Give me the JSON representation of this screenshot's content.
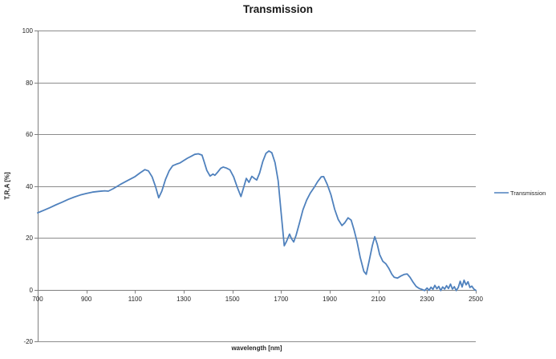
{
  "title": "Transmission",
  "legend": {
    "label": "Transmission"
  },
  "colors": {
    "series_line": "#4F81BD",
    "gridline": "#8C8C8C",
    "axis": "#808080",
    "label_text": "#262626"
  },
  "chart_data": {
    "type": "line",
    "title": "Transmission",
    "xlabel": "wavelength [nm]",
    "ylabel": "T,R,A [%]",
    "xlim": [
      700,
      2500
    ],
    "ylim": [
      -20,
      100
    ],
    "x_ticks": [
      700,
      900,
      1100,
      1300,
      1500,
      1700,
      1900,
      2100,
      2300,
      2500
    ],
    "y_ticks": [
      -20,
      0,
      20,
      40,
      60,
      80,
      100
    ],
    "grid": "horizontal-only",
    "legend_position": "right-middle",
    "series": [
      {
        "name": "Transmission",
        "color": "#4F81BD",
        "points": [
          [
            700,
            29.6
          ],
          [
            725,
            30.6
          ],
          [
            750,
            31.6
          ],
          [
            775,
            32.7
          ],
          [
            800,
            33.7
          ],
          [
            825,
            34.8
          ],
          [
            850,
            35.7
          ],
          [
            875,
            36.5
          ],
          [
            900,
            37.1
          ],
          [
            925,
            37.6
          ],
          [
            950,
            37.9
          ],
          [
            975,
            38.1
          ],
          [
            990,
            38.0
          ],
          [
            1010,
            38.9
          ],
          [
            1040,
            40.6
          ],
          [
            1070,
            42.1
          ],
          [
            1100,
            43.6
          ],
          [
            1120,
            45.0
          ],
          [
            1140,
            46.3
          ],
          [
            1155,
            45.8
          ],
          [
            1170,
            43.5
          ],
          [
            1185,
            39.5
          ],
          [
            1197,
            35.4
          ],
          [
            1210,
            38.0
          ],
          [
            1225,
            42.5
          ],
          [
            1240,
            45.8
          ],
          [
            1255,
            47.8
          ],
          [
            1270,
            48.4
          ],
          [
            1285,
            48.9
          ],
          [
            1300,
            49.8
          ],
          [
            1315,
            50.7
          ],
          [
            1330,
            51.4
          ],
          [
            1345,
            52.2
          ],
          [
            1360,
            52.4
          ],
          [
            1375,
            51.9
          ],
          [
            1385,
            49.0
          ],
          [
            1395,
            46.0
          ],
          [
            1408,
            43.8
          ],
          [
            1420,
            44.6
          ],
          [
            1428,
            44.1
          ],
          [
            1440,
            45.4
          ],
          [
            1452,
            46.8
          ],
          [
            1462,
            47.3
          ],
          [
            1475,
            46.9
          ],
          [
            1490,
            46.2
          ],
          [
            1505,
            43.5
          ],
          [
            1520,
            39.5
          ],
          [
            1535,
            35.9
          ],
          [
            1545,
            39.0
          ],
          [
            1557,
            42.9
          ],
          [
            1568,
            41.4
          ],
          [
            1580,
            43.7
          ],
          [
            1590,
            42.9
          ],
          [
            1600,
            42.3
          ],
          [
            1612,
            45.0
          ],
          [
            1625,
            49.5
          ],
          [
            1638,
            52.6
          ],
          [
            1650,
            53.5
          ],
          [
            1662,
            52.8
          ],
          [
            1675,
            49.0
          ],
          [
            1688,
            42.0
          ],
          [
            1700,
            30.0
          ],
          [
            1713,
            16.9
          ],
          [
            1722,
            18.5
          ],
          [
            1735,
            21.4
          ],
          [
            1743,
            19.6
          ],
          [
            1752,
            18.4
          ],
          [
            1762,
            21.0
          ],
          [
            1775,
            25.5
          ],
          [
            1790,
            30.8
          ],
          [
            1805,
            34.5
          ],
          [
            1820,
            37.2
          ],
          [
            1835,
            39.3
          ],
          [
            1850,
            41.6
          ],
          [
            1865,
            43.5
          ],
          [
            1875,
            43.6
          ],
          [
            1890,
            40.5
          ],
          [
            1905,
            36.6
          ],
          [
            1920,
            31.0
          ],
          [
            1935,
            27.0
          ],
          [
            1950,
            24.7
          ],
          [
            1962,
            25.8
          ],
          [
            1975,
            27.7
          ],
          [
            1988,
            26.8
          ],
          [
            2000,
            23.0
          ],
          [
            2012,
            18.5
          ],
          [
            2025,
            12.5
          ],
          [
            2040,
            7.0
          ],
          [
            2050,
            5.9
          ],
          [
            2062,
            11.0
          ],
          [
            2075,
            17.0
          ],
          [
            2085,
            20.4
          ],
          [
            2095,
            17.5
          ],
          [
            2105,
            13.5
          ],
          [
            2118,
            10.9
          ],
          [
            2130,
            10.0
          ],
          [
            2142,
            8.3
          ],
          [
            2155,
            5.9
          ],
          [
            2165,
            4.7
          ],
          [
            2178,
            4.4
          ],
          [
            2192,
            5.2
          ],
          [
            2205,
            5.8
          ],
          [
            2218,
            6.0
          ],
          [
            2230,
            4.7
          ],
          [
            2242,
            2.9
          ],
          [
            2255,
            1.2
          ],
          [
            2268,
            0.4
          ],
          [
            2280,
            0.0
          ],
          [
            2290,
            -0.4
          ],
          [
            2300,
            0.6
          ],
          [
            2308,
            -0.3
          ],
          [
            2316,
            0.9
          ],
          [
            2324,
            0.1
          ],
          [
            2332,
            1.6
          ],
          [
            2340,
            0.3
          ],
          [
            2348,
            1.2
          ],
          [
            2356,
            -0.4
          ],
          [
            2364,
            1.0
          ],
          [
            2372,
            0.2
          ],
          [
            2380,
            1.5
          ],
          [
            2388,
            0.4
          ],
          [
            2396,
            2.1
          ],
          [
            2404,
            0.2
          ],
          [
            2412,
            1.1
          ],
          [
            2420,
            -0.4
          ],
          [
            2428,
            0.8
          ],
          [
            2436,
            3.2
          ],
          [
            2444,
            1.0
          ],
          [
            2452,
            3.6
          ],
          [
            2460,
            1.8
          ],
          [
            2468,
            3.0
          ],
          [
            2476,
            0.8
          ],
          [
            2484,
            1.3
          ],
          [
            2492,
            0.2
          ],
          [
            2500,
            -0.3
          ]
        ]
      }
    ]
  }
}
